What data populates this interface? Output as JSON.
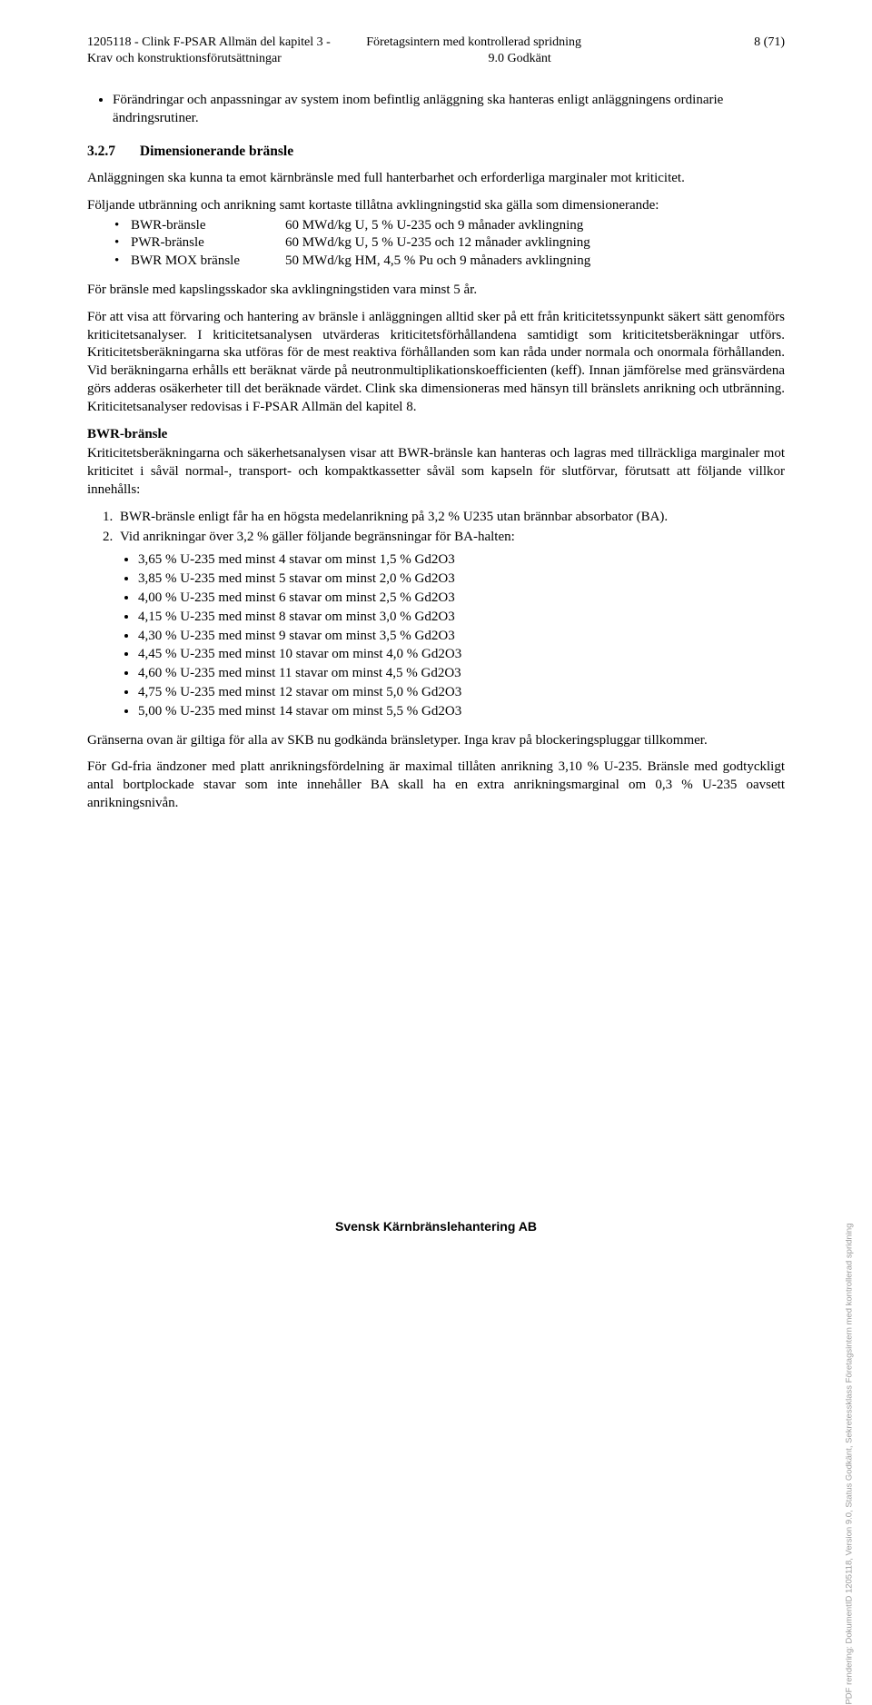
{
  "header": {
    "left_line1": "1205118  -  Clink F-PSAR Allmän del kapitel 3 -",
    "left_line2": "Krav och konstruktionsförutsättningar",
    "center_line1": "Företagsintern med kontrollerad spridning",
    "center_line2": "9.0  Godkänt",
    "right_line1": "8 (71)"
  },
  "intro_bullet": "Förändringar och anpassningar av system inom befintlig anläggning ska hanteras enligt anläggningens ordinarie ändringsrutiner.",
  "section": {
    "num": "3.2.7",
    "title": "Dimensionerande bränsle"
  },
  "p1": "Anläggningen ska kunna ta emot kärnbränsle med full hanterbarhet och erforderliga marginaler mot kriticitet.",
  "p2": "Följande utbränning och anrikning samt kortaste tillåtna avklingningstid ska gälla som dimensionerande:",
  "fuel_table": [
    {
      "name": "BWR-bränsle",
      "spec": "60 MWd/kg U, 5 % U-235 och 9 månader avklingning"
    },
    {
      "name": "PWR-bränsle",
      "spec": "60 MWd/kg U, 5 % U-235 och 12 månader avklingning"
    },
    {
      "name": "BWR MOX bränsle",
      "spec": "50 MWd/kg HM, 4,5 % Pu och 9 månaders avklingning"
    }
  ],
  "p3": "För bränsle med kapslingsskador ska avklingningstiden vara minst 5 år.",
  "p4": "För att visa att förvaring och hantering av bränsle i anläggningen alltid sker på ett från kriticitetssynpunkt säkert sätt genomförs kriticitetsanalyser. I kriticitetsanalysen utvärderas kriticitetsförhållandena samtidigt som kriticitetsberäkningar utförs. Kriticitetsberäkningarna ska utföras för de mest reaktiva förhållanden som kan råda under normala och onormala förhållanden. Vid beräkningarna erhålls ett beräknat värde på neutronmultiplikationskoefficienten (keff). Innan jämförelse med gränsvärdena görs adderas osäkerheter till det beräknade värdet. Clink ska dimensioneras med hänsyn till bränslets anrikning och utbränning. Kriticitetsanalyser redovisas i F-PSAR Allmän del kapitel 8.",
  "bwr_heading": "BWR-bränsle",
  "p5": "Kriticitetsberäkningarna och säkerhetsanalysen visar att BWR-bränsle kan hanteras och lagras med tillräckliga marginaler mot kriticitet i såväl normal-, transport- och kompaktkassetter såväl som kapseln för slutförvar, förutsatt att följande villkor innehålls:",
  "ol": [
    "BWR-bränsle enligt får ha en högsta medelanrikning på 3,2 % U235 utan brännbar absorbator (BA).",
    "Vid anrikningar över 3,2 % gäller följande begränsningar för BA-halten:"
  ],
  "ba_limits": [
    "3,65 % U-235 med minst 4 stavar om minst 1,5 % Gd2O3",
    "3,85 % U-235 med minst 5 stavar om minst 2,0 % Gd2O3",
    "4,00 % U-235 med minst 6 stavar om minst 2,5 % Gd2O3",
    "4,15 % U-235 med minst 8 stavar om minst 3,0 % Gd2O3",
    "4,30 % U-235 med minst 9 stavar om minst 3,5 % Gd2O3",
    "4,45 % U-235 med minst 10 stavar om minst 4,0 % Gd2O3",
    "4,60 % U-235 med minst 11 stavar om minst 4,5 % Gd2O3",
    "4,75 % U-235 med minst 12 stavar om minst 5,0 % Gd2O3",
    "5,00 % U-235 med minst 14 stavar om minst 5,5 % Gd2O3"
  ],
  "p6": "Gränserna ovan är giltiga för alla av SKB nu godkända bränsletyper. Inga krav på blockeringspluggar tillkommer.",
  "p7": "För Gd-fria ändzoner med platt anrikningsfördelning är maximal tillåten anrikning 3,10 % U-235. Bränsle med godtyckligt antal bortplockade stavar som inte innehåller BA skall ha en extra anrikningsmarginal om 0,3 % U-235 oavsett anrikningsnivån.",
  "footer": "Svensk Kärnbränslehantering AB",
  "side": "PDF rendering: DokumentID 1205118, Version 9.0, Status Godkänt, Sekretessklass Företagsintern med kontrollerad spridning"
}
